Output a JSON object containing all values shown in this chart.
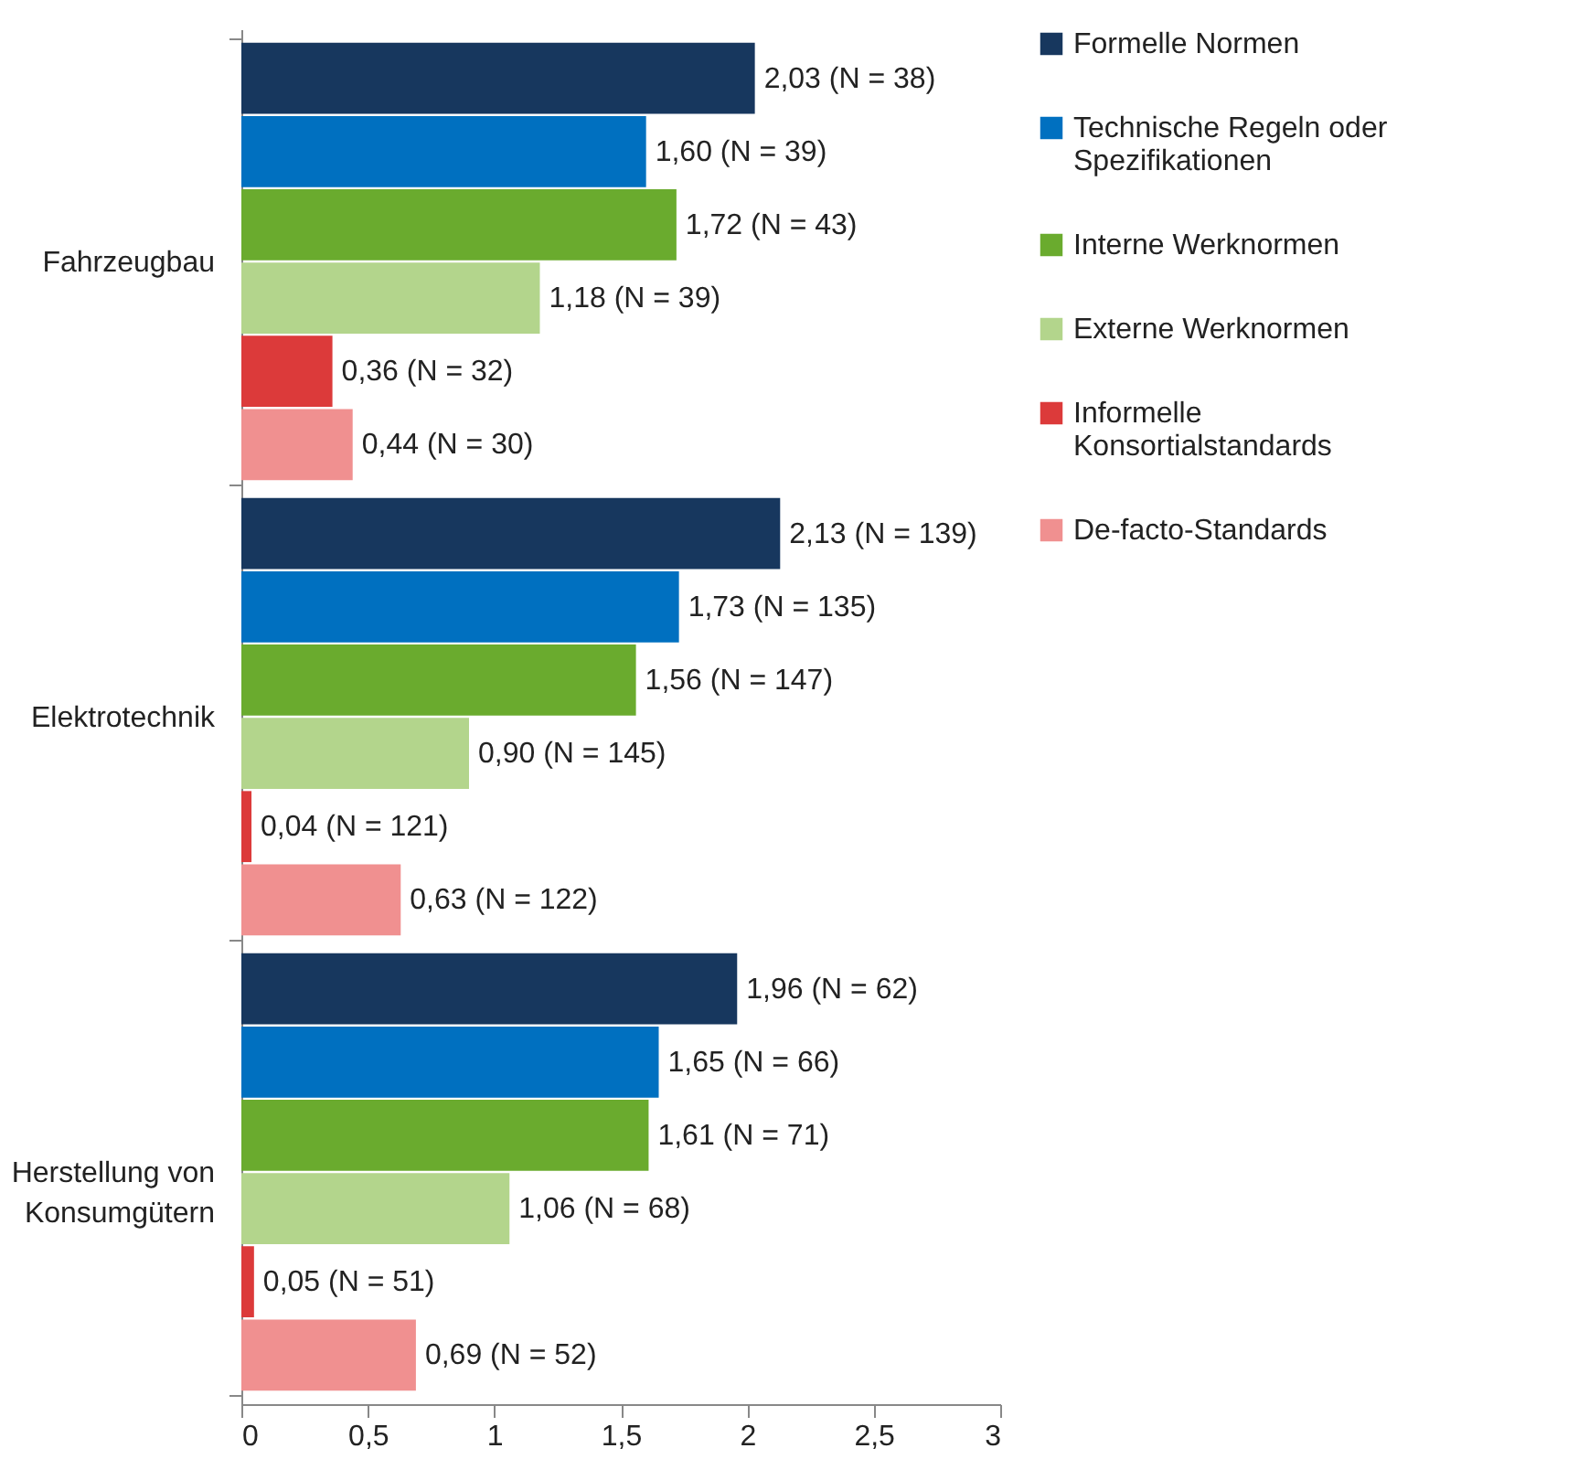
{
  "chart_data": {
    "type": "bar",
    "orientation": "horizontal",
    "categories": [
      "Fahrzeugbau",
      "Elektrotechnik",
      "Herstellung von Konsumgütern"
    ],
    "series": [
      {
        "name": "Formelle Normen",
        "color": "#17375e",
        "values": [
          2.03,
          2.13,
          1.96
        ],
        "value_labels": [
          "2,03 (N = 38)",
          "2,13 (N = 139)",
          "1,96 (N = 62)"
        ]
      },
      {
        "name": "Technische Regeln oder Spezifikationen",
        "color": "#0070c0",
        "values": [
          1.6,
          1.73,
          1.65
        ],
        "value_labels": [
          "1,60 (N = 39)",
          "1,73 (N = 135)",
          "1,65 (N = 66)"
        ]
      },
      {
        "name": "Interne Werknormen",
        "color": "#6aab2e",
        "values": [
          1.72,
          1.56,
          1.61
        ],
        "value_labels": [
          "1,72 (N = 43)",
          "1,56 (N = 147)",
          "1,61 (N = 71)"
        ]
      },
      {
        "name": "Externe Werknormen",
        "color": "#b3d58c",
        "values": [
          1.18,
          0.9,
          1.06
        ],
        "value_labels": [
          "1,18 (N = 39)",
          "0,90 (N = 145)",
          "1,06 (N = 68)"
        ]
      },
      {
        "name": "Informelle Konsortialstandards",
        "color": "#dc3a3a",
        "values": [
          0.36,
          0.04,
          0.05
        ],
        "value_labels": [
          "0,36 (N = 32)",
          "0,04 (N = 121)",
          "0,05 (N = 51)"
        ]
      },
      {
        "name": "De-facto-Standards",
        "color": "#f09090",
        "values": [
          0.44,
          0.63,
          0.69
        ],
        "value_labels": [
          "0,44 (N = 30)",
          "0,63 (N = 122)",
          "0,69 (N = 52)"
        ]
      }
    ],
    "xlim": [
      0,
      3
    ],
    "xticks": [
      0,
      {
        "value": 0.5,
        "label": "0,5"
      },
      1,
      {
        "value": 1.5,
        "label": "1,5"
      },
      2,
      {
        "value": 2.5,
        "label": "2,5"
      },
      3
    ],
    "grid": false,
    "legend": "right"
  }
}
